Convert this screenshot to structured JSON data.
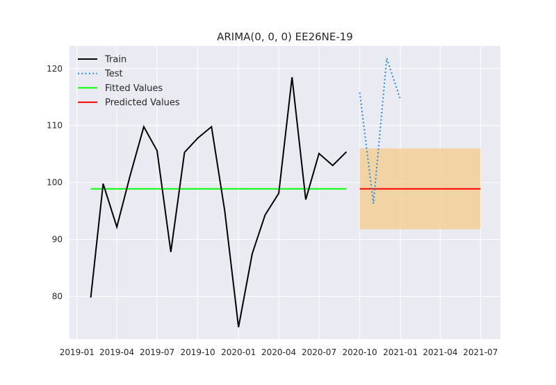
{
  "chart_data": {
    "type": "line",
    "title": "ARIMA(0, 0, 0) EE26NE-19",
    "xlabel": "",
    "ylabel": "",
    "x_ticks": [
      "2019-01",
      "2019-04",
      "2019-07",
      "2019-10",
      "2020-01",
      "2020-04",
      "2020-07",
      "2020-10",
      "2021-01",
      "2021-04",
      "2021-07"
    ],
    "y_ticks": [
      80,
      90,
      100,
      110,
      120
    ],
    "xlim": [
      "2018-12-15",
      "2021-08-15"
    ],
    "ylim": [
      72.5,
      124
    ],
    "grid": true,
    "legend_position": "top-left",
    "series": [
      {
        "name": "Train",
        "color": "#000000",
        "style": "solid",
        "x": [
          "2019-02-01",
          "2019-03-01",
          "2019-04-01",
          "2019-05-01",
          "2019-06-01",
          "2019-07-01",
          "2019-08-01",
          "2019-09-01",
          "2019-10-01",
          "2019-11-01",
          "2019-12-01",
          "2020-01-01",
          "2020-02-01",
          "2020-03-01",
          "2020-04-01",
          "2020-05-01",
          "2020-06-01",
          "2020-07-01",
          "2020-08-01",
          "2020-09-01"
        ],
        "y": [
          79.8,
          99.8,
          92.2,
          101.2,
          109.8,
          105.6,
          87.8,
          105.3,
          107.8,
          109.8,
          95.0,
          74.6,
          87.5,
          94.3,
          98.1,
          118.5,
          97.0,
          105.1,
          103.0,
          105.4
        ]
      },
      {
        "name": "Test",
        "color": "#1e88e5",
        "style": "dotted",
        "x": [
          "2020-10-01",
          "2020-11-01",
          "2020-12-01",
          "2021-01-01"
        ],
        "y": [
          115.8,
          96.3,
          121.8,
          114.6
        ]
      },
      {
        "name": "Fitted Values",
        "color": "#00ff00",
        "style": "solid",
        "x": [
          "2019-02-01",
          "2020-09-01"
        ],
        "y": [
          98.9,
          98.9
        ]
      },
      {
        "name": "Predicted Values",
        "color": "#ff0000",
        "style": "solid",
        "x": [
          "2020-10-01",
          "2021-07-01"
        ],
        "y": [
          98.9,
          98.9
        ]
      }
    ],
    "confidence_band": {
      "color": "#f5c983",
      "x": [
        "2020-10-01",
        "2021-07-01"
      ],
      "lower": 91.8,
      "upper": 106.0
    },
    "colors": {
      "background": "#ffffff",
      "plot_background": "#eaeaf2",
      "grid": "#ffffff",
      "text": "#262626"
    }
  }
}
